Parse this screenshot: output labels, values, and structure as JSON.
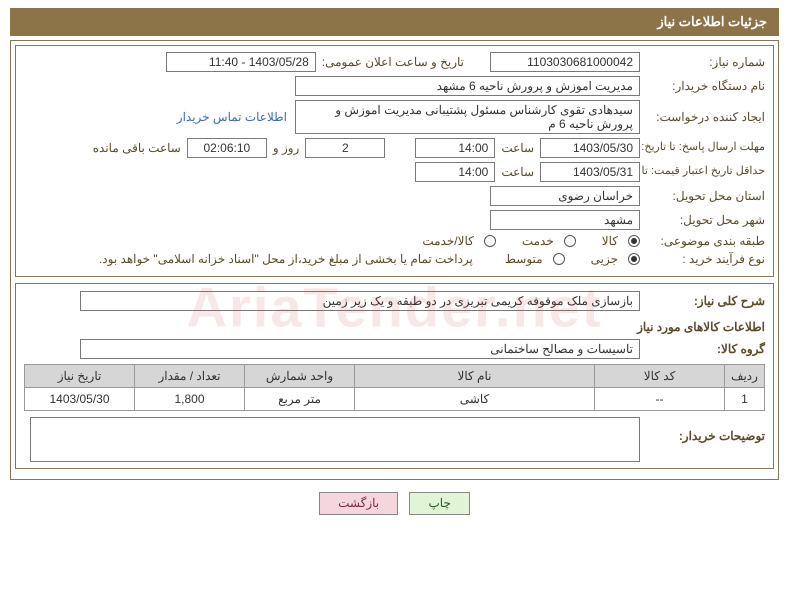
{
  "watermark": "AriaTender.net",
  "header": {
    "title": "جزئیات اطلاعات نیاز"
  },
  "fields": {
    "need_number_label": "شماره نیاز:",
    "need_number": "1103030681000042",
    "announce_label": "تاریخ و ساعت اعلان عمومی:",
    "announce_value": "1403/05/28 - 11:40",
    "buyer_label": "نام دستگاه خریدار:",
    "buyer_value": "مدیریت اموزش و پرورش ناحیه 6 مشهد",
    "creator_label": "ایجاد کننده درخواست:",
    "creator_value": "سیدهادی تقوی کارشناس مسئول پشتیبانی  مدیریت اموزش و پرورش ناحیه 6 م",
    "contact_link": "اطلاعات تماس خریدار",
    "deadline_label": "مهلت ارسال پاسخ: تا تاریخ:",
    "deadline_date": "1403/05/30",
    "hour_label": "ساعت",
    "deadline_hour": "14:00",
    "days_count": "2",
    "days_label": "روز و",
    "countdown": "02:06:10",
    "remain_label": "ساعت باقی مانده",
    "validity_label": "حداقل تاریخ اعتبار قیمت: تا تاریخ:",
    "validity_date": "1403/05/31",
    "validity_hour": "14:00",
    "province_label": "استان محل تحویل:",
    "province_value": "خراسان رضوی",
    "city_label": "شهر محل تحویل:",
    "city_value": "مشهد",
    "category_label": "طبقه بندی موضوعی:",
    "process_label": "نوع فرآیند خرید :",
    "payment_note": "پرداخت تمام یا بخشی از مبلغ خرید،از محل \"اسناد خزانه اسلامی\" خواهد بود.",
    "desc_label": "شرح کلی نیاز:",
    "desc_value": "بازسازی ملک موقوفه کریمی تبریزی در دو طبقه و یک زیر زمین",
    "items_title": "اطلاعات کالاهای مورد نیاز",
    "group_label": "گروه کالا:",
    "group_value": "تاسیسات و مصالح ساختمانی",
    "buyer_notes_label": "توضیحات خریدار:"
  },
  "radios": {
    "category": {
      "options": [
        "کالا",
        "خدمت",
        "کالا/خدمت"
      ],
      "selected": 0
    },
    "process": {
      "options": [
        "جزیی",
        "متوسط"
      ],
      "selected": 0
    }
  },
  "table": {
    "headers": [
      "ردیف",
      "کد کالا",
      "نام کالا",
      "واحد شمارش",
      "تعداد / مقدار",
      "تاریخ نیاز"
    ],
    "col_widths": [
      "40px",
      "130px",
      "auto",
      "110px",
      "110px",
      "110px"
    ],
    "rows": [
      [
        "1",
        "--",
        "کاشی",
        "متر مربع",
        "1,800",
        "1403/05/30"
      ]
    ]
  },
  "buttons": {
    "print": "چاپ",
    "back": "بازگشت"
  },
  "colors": {
    "header_bg": "#8c7448",
    "border": "#867556",
    "label": "#5a4b2b",
    "link": "#3b6db5"
  }
}
